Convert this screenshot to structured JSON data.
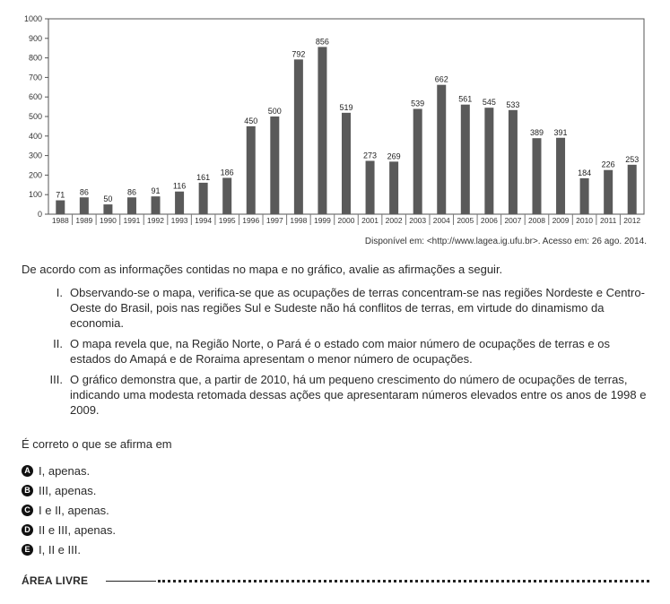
{
  "chart_data": {
    "type": "bar",
    "categories": [
      "1988",
      "1989",
      "1990",
      "1991",
      "1992",
      "1993",
      "1994",
      "1995",
      "1996",
      "1997",
      "1998",
      "1999",
      "2000",
      "2001",
      "2002",
      "2003",
      "2004",
      "2005",
      "2006",
      "2007",
      "2008",
      "2009",
      "2010",
      "2011",
      "2012"
    ],
    "values": [
      71,
      86,
      50,
      86,
      91,
      116,
      161,
      186,
      450,
      500,
      792,
      856,
      519,
      273,
      269,
      539,
      662,
      561,
      545,
      533,
      389,
      391,
      184,
      226,
      253
    ],
    "ylim": [
      0,
      1000
    ],
    "yticks": [
      0,
      100,
      200,
      300,
      400,
      500,
      600,
      700,
      800,
      900,
      1000
    ],
    "grid": false,
    "legend": "none",
    "bar_color": "#5a5a5a"
  },
  "source": "Disponível em: <http://www.lagea.ig.ufu.br>. Acesso em: 26 ago. 2014.",
  "question": "De acordo com as informações contidas no mapa e no gráfico, avalie as afirmações a seguir.",
  "items": [
    {
      "num": "I.",
      "text": "Observando-se o mapa, verifica-se que as ocupações de terras concentram-se nas regiões Nordeste e Centro-Oeste do Brasil, pois nas regiões Sul e Sudeste não há conflitos de terras, em virtude do dinamismo da economia."
    },
    {
      "num": "II.",
      "text": "O mapa revela que, na Região Norte, o Pará é o estado com maior número de ocupações de terras e os estados do Amapá e de Roraima apresentam o menor número de ocupações."
    },
    {
      "num": "III.",
      "text": "O gráfico demonstra que, a partir de 2010, há um pequeno crescimento do número de ocupações de terras, indicando uma modesta retomada dessas ações que apresentaram números elevados entre os anos de 1998 e 2009."
    }
  ],
  "prompt": "É correto o que se afirma em",
  "options": [
    {
      "letter": "A",
      "text": "I, apenas."
    },
    {
      "letter": "B",
      "text": "III, apenas."
    },
    {
      "letter": "C",
      "text": "I e II, apenas."
    },
    {
      "letter": "D",
      "text": "II e III, apenas."
    },
    {
      "letter": "E",
      "text": "I, II e III."
    }
  ],
  "free_area_label": "ÁREA LIVRE"
}
